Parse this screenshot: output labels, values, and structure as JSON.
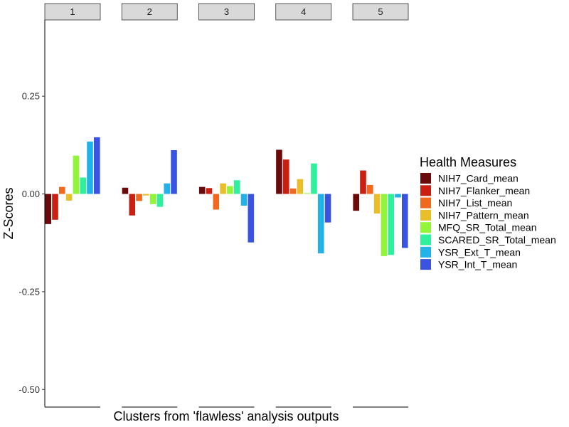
{
  "chart_data": {
    "type": "bar",
    "facet_by": "cluster",
    "facets": [
      "1",
      "2",
      "3",
      "4",
      "5"
    ],
    "xlabel": "Clusters from 'flawless' analysis outputs",
    "ylabel": "Z-Scores",
    "ylim": [
      -0.545,
      0.445
    ],
    "yticks": [
      0.25,
      0,
      -0.25,
      -0.5
    ],
    "ytick_labels": [
      "0.25",
      "0.00",
      "-0.25",
      "-0.50"
    ],
    "grid": false,
    "legend": {
      "title": "Health Measures",
      "position": "right"
    },
    "series": [
      {
        "name": "NIH7_Card_mean",
        "color": "#6b0a0a",
        "values": [
          -0.077,
          0.016,
          0.018,
          0.113,
          -0.043
        ]
      },
      {
        "name": "NIH7_Flanker_mean",
        "color": "#c92012",
        "values": [
          -0.066,
          -0.055,
          0.015,
          0.088,
          0.06
        ]
      },
      {
        "name": "NIH7_List_mean",
        "color": "#f0691f",
        "values": [
          0.018,
          -0.018,
          -0.04,
          0.014,
          0.023
        ]
      },
      {
        "name": "NIH7_Pattern_mean",
        "color": "#e9be2b",
        "values": [
          -0.017,
          -0.004,
          0.027,
          0.038,
          -0.05
        ]
      },
      {
        "name": "MFQ_SR_Total_mean",
        "color": "#92f53a",
        "values": [
          0.098,
          -0.026,
          0.02,
          0.002,
          -0.159
        ]
      },
      {
        "name": "SCARED_SR_Total_mean",
        "color": "#2ff19c",
        "values": [
          0.042,
          -0.033,
          0.035,
          0.078,
          -0.156
        ]
      },
      {
        "name": "YSR_Ext_T_mean",
        "color": "#23b2e8",
        "values": [
          0.134,
          0.027,
          -0.03,
          -0.152,
          -0.009
        ]
      },
      {
        "name": "YSR_Int_T_mean",
        "color": "#3b54e0",
        "values": [
          0.145,
          0.112,
          -0.124,
          -0.073,
          -0.138
        ]
      }
    ]
  }
}
